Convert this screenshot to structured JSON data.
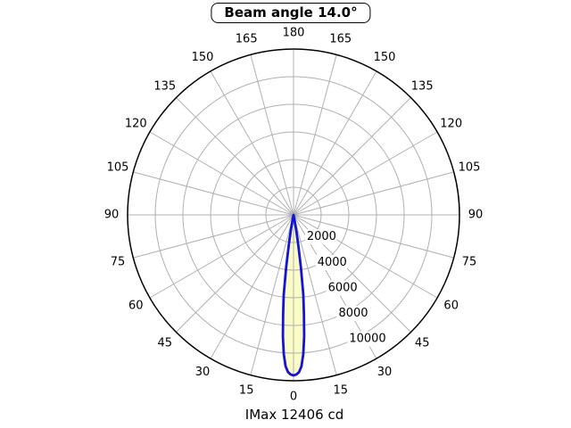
{
  "title": "Beam angle 14.0°",
  "footer": "IMax 12406 cd",
  "chart_data": {
    "type": "polar",
    "title": "Beam angle 14.0°",
    "footer": "IMax 12406 cd",
    "imax_cd": 12406,
    "beam_angle_deg": 14.0,
    "angle_tick_labels": [
      0,
      15,
      30,
      45,
      60,
      75,
      90,
      105,
      120,
      135,
      150,
      165,
      180
    ],
    "angle_ticks_mirrored": true,
    "angle_step_deg": 15,
    "r_tick_labels": [
      2000,
      4000,
      6000,
      8000,
      10000
    ],
    "r_tick_step": 2000,
    "r_label_angle_deg": 22.5,
    "grid": true,
    "profile": {
      "angles_deg": [
        -14,
        -13,
        -12,
        -11,
        -10,
        -9,
        -8,
        -7,
        -6,
        -5,
        -4,
        -3,
        -2,
        -1,
        0,
        1,
        2,
        3,
        4,
        5,
        6,
        7,
        8,
        9,
        10,
        11,
        12,
        13,
        14
      ],
      "relative_intensity": [
        0.002,
        0.006,
        0.016,
        0.04,
        0.095,
        0.185,
        0.33,
        0.5,
        0.62,
        0.76,
        0.87,
        0.945,
        0.98,
        0.995,
        1.0,
        0.995,
        0.98,
        0.945,
        0.87,
        0.76,
        0.62,
        0.5,
        0.33,
        0.185,
        0.095,
        0.04,
        0.016,
        0.006,
        0.002
      ]
    },
    "colors": {
      "beam_stroke": "#1414d2",
      "beam_fill": "#fbfbc6",
      "grid": "#b0b0b0",
      "outline": "#000000",
      "text": "#000000",
      "background": "#ffffff"
    }
  }
}
